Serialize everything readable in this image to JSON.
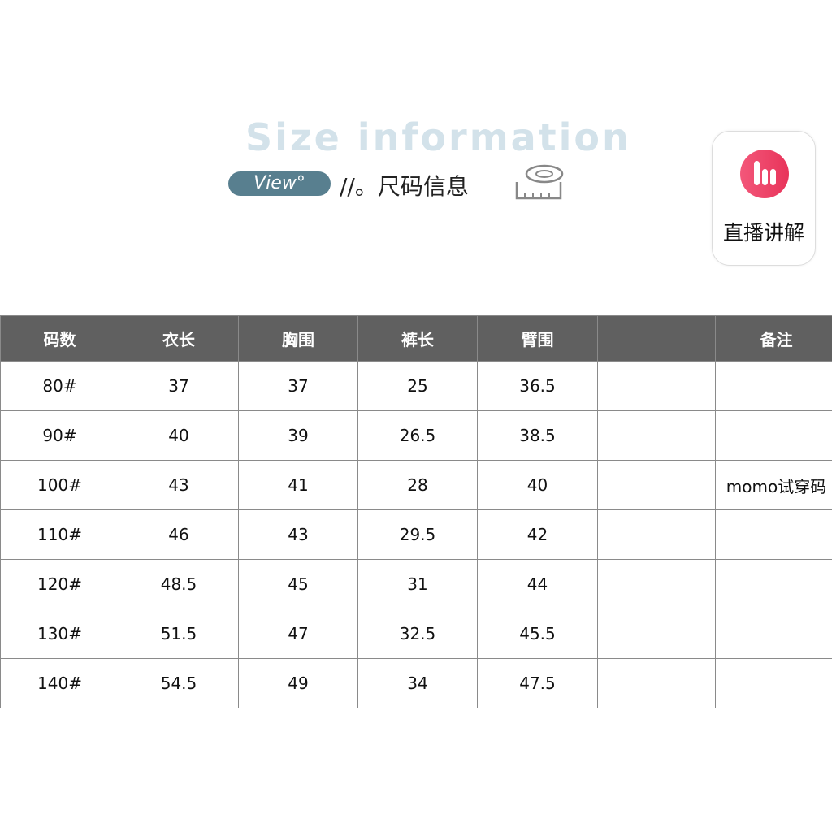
{
  "header": {
    "title": "Size information",
    "pill": "View°",
    "subtitle": "//。尺码信息",
    "tape_icon": "tape-measure-icon"
  },
  "app_badge": {
    "label": "直播讲解",
    "icon": "live-bars-icon",
    "color": "#ec4264"
  },
  "table": {
    "columns": [
      "码数",
      "衣长",
      "胸围",
      "裤长",
      "臂围",
      "",
      "备注"
    ],
    "rows": [
      [
        "80#",
        "37",
        "37",
        "25",
        "36.5",
        "",
        ""
      ],
      [
        "90#",
        "40",
        "39",
        "26.5",
        "38.5",
        "",
        ""
      ],
      [
        "100#",
        "43",
        "41",
        "28",
        "40",
        "",
        "momo试穿码"
      ],
      [
        "110#",
        "46",
        "43",
        "29.5",
        "42",
        "",
        ""
      ],
      [
        "120#",
        "48.5",
        "45",
        "31",
        "44",
        "",
        ""
      ],
      [
        "130#",
        "51.5",
        "47",
        "32.5",
        "45.5",
        "",
        ""
      ],
      [
        "140#",
        "54.5",
        "49",
        "34",
        "47.5",
        "",
        ""
      ]
    ]
  }
}
